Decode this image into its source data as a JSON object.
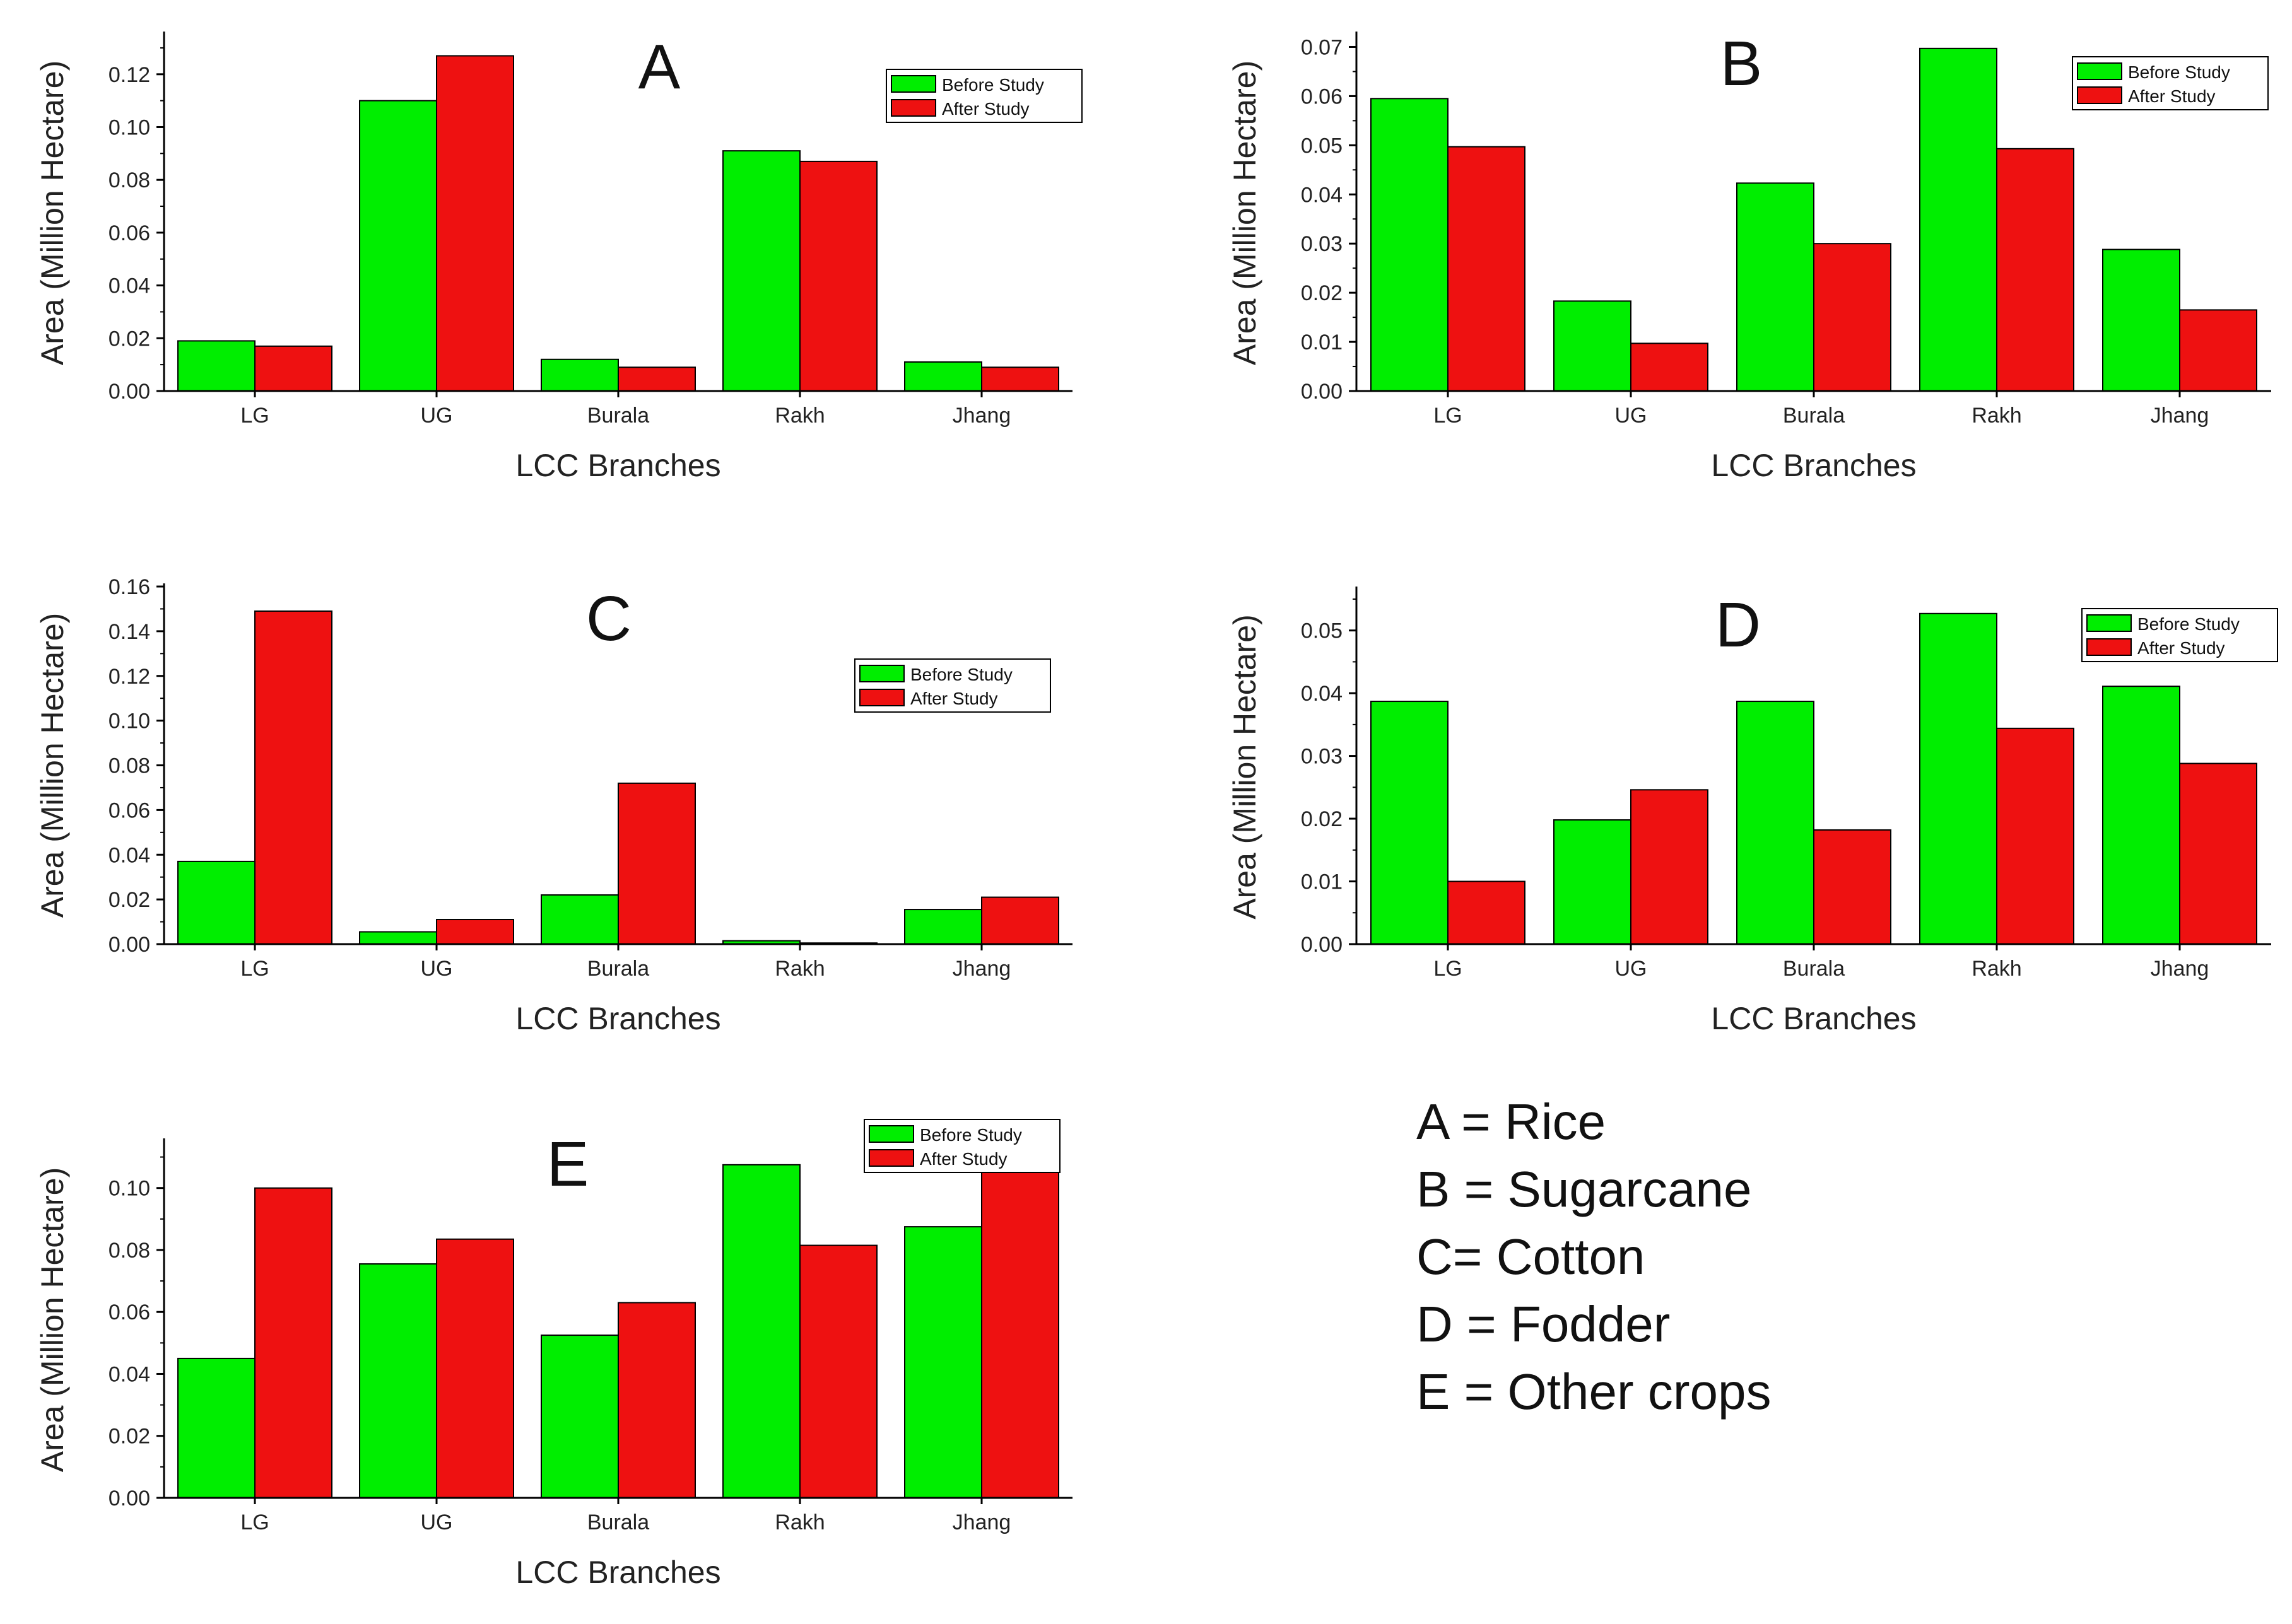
{
  "colors": {
    "before": "#00ee00",
    "after": "#ee1111",
    "frame": "#000000"
  },
  "chart_data": [
    {
      "type": "bar",
      "title": "A",
      "xlabel": "LCC Branches",
      "ylabel": "Area (Million Hectare)",
      "categories": [
        "LG",
        "UG",
        "Burala",
        "Rakh",
        "Jhang"
      ],
      "ylim": [
        0,
        0.135
      ],
      "yticks": [
        0.0,
        0.02,
        0.04,
        0.06,
        0.08,
        0.1,
        0.12
      ],
      "ytick_labels": [
        "0.00",
        "0.02",
        "0.04",
        "0.06",
        "0.08",
        "0.10",
        "0.12"
      ],
      "legend_position": "top-right",
      "series": [
        {
          "name": "Before Study",
          "values": [
            0.019,
            0.11,
            0.012,
            0.091,
            0.011
          ]
        },
        {
          "name": "After Study",
          "values": [
            0.017,
            0.127,
            0.009,
            0.087,
            0.009
          ]
        }
      ]
    },
    {
      "type": "bar",
      "title": "B",
      "xlabel": "LCC Branches",
      "ylabel": "Area (Million Hectare)",
      "categories": [
        "LG",
        "UG",
        "Burala",
        "Rakh",
        "Jhang"
      ],
      "ylim": [
        0,
        0.0725
      ],
      "yticks": [
        0.0,
        0.01,
        0.02,
        0.03,
        0.04,
        0.05,
        0.06,
        0.07
      ],
      "ytick_labels": [
        "0.00",
        "0.01",
        "0.02",
        "0.03",
        "0.04",
        "0.05",
        "0.06",
        "0.07"
      ],
      "legend_position": "top-right",
      "series": [
        {
          "name": "Before Study",
          "values": [
            0.0595,
            0.0183,
            0.0423,
            0.0697,
            0.0288
          ]
        },
        {
          "name": "After Study",
          "values": [
            0.0497,
            0.0097,
            0.03,
            0.0493,
            0.0165
          ]
        }
      ]
    },
    {
      "type": "bar",
      "title": "C",
      "xlabel": "LCC Branches",
      "ylabel": "Area (Million Hectare)",
      "categories": [
        "LG",
        "UG",
        "Burala",
        "Rakh",
        "Jhang"
      ],
      "ylim": [
        0,
        0.16
      ],
      "yticks": [
        0.0,
        0.02,
        0.04,
        0.06,
        0.08,
        0.1,
        0.12,
        0.14,
        0.16
      ],
      "ytick_labels": [
        "0.00",
        "0.02",
        "0.04",
        "0.06",
        "0.08",
        "0.10",
        "0.12",
        "0.14",
        "0.16"
      ],
      "legend_position": "top-right",
      "series": [
        {
          "name": "Before Study",
          "values": [
            0.037,
            0.0055,
            0.022,
            0.0015,
            0.0155
          ]
        },
        {
          "name": "After Study",
          "values": [
            0.149,
            0.011,
            0.072,
            0.0005,
            0.021
          ]
        }
      ]
    },
    {
      "type": "bar",
      "title": "D",
      "xlabel": "LCC Branches",
      "ylabel": "Area (Million Hectare)",
      "categories": [
        "LG",
        "UG",
        "Burala",
        "Rakh",
        "Jhang"
      ],
      "ylim": [
        0,
        0.0565
      ],
      "yticks": [
        0.0,
        0.01,
        0.02,
        0.03,
        0.04,
        0.05
      ],
      "ytick_labels": [
        "0.00",
        "0.01",
        "0.02",
        "0.03",
        "0.04",
        "0.05"
      ],
      "legend_position": "top-right",
      "series": [
        {
          "name": "Before Study",
          "values": [
            0.0387,
            0.0198,
            0.0387,
            0.0527,
            0.0411
          ]
        },
        {
          "name": "After Study",
          "values": [
            0.01,
            0.0246,
            0.0182,
            0.0344,
            0.0288
          ]
        }
      ]
    },
    {
      "type": "bar",
      "title": "E",
      "xlabel": "LCC Branches",
      "ylabel": "Area (Million Hectare)",
      "categories": [
        "LG",
        "UG",
        "Burala",
        "Rakh",
        "Jhang"
      ],
      "ylim": [
        0,
        0.115
      ],
      "yticks": [
        0.0,
        0.02,
        0.04,
        0.06,
        0.08,
        0.1
      ],
      "ytick_labels": [
        "0.00",
        "0.02",
        "0.04",
        "0.06",
        "0.08",
        "0.10"
      ],
      "legend_position": "top-right",
      "series": [
        {
          "name": "Before Study",
          "values": [
            0.045,
            0.0755,
            0.0525,
            0.1075,
            0.0875
          ]
        },
        {
          "name": "After Study",
          "values": [
            0.1,
            0.0835,
            0.063,
            0.0815,
            0.107
          ]
        }
      ]
    }
  ],
  "crop_key": [
    "A = Rice",
    "B = Sugarcane",
    "C= Cotton",
    "D = Fodder",
    "E = Other crops"
  ]
}
